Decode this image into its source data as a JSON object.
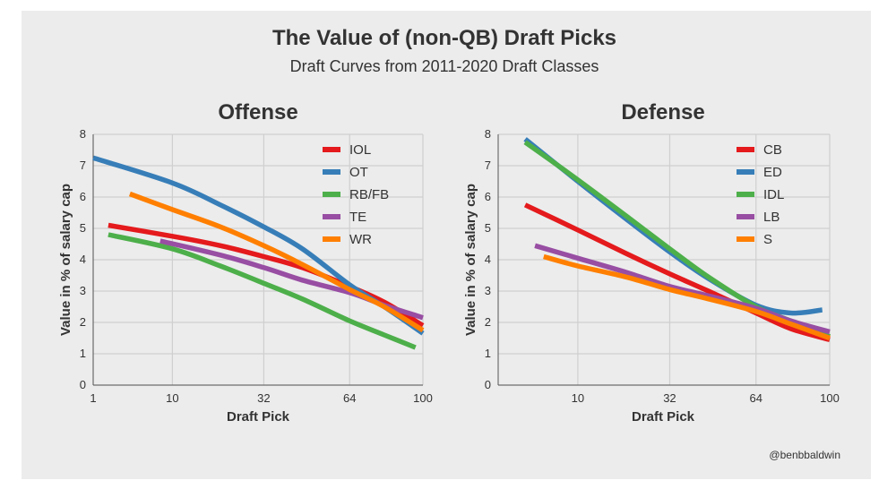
{
  "title": "The Value of (non-QB) Draft Picks",
  "subtitle": "Draft Curves from 2011-2020 Draft Classes",
  "credit": "@benbbaldwin",
  "chart_data": [
    {
      "type": "line",
      "title": "Offense",
      "xlabel": "Draft Pick",
      "ylabel": "Value in % of salary cap",
      "x_scale": "sqrt",
      "xlim": [
        1,
        100
      ],
      "ylim": [
        0,
        8
      ],
      "xticks": [
        1,
        10,
        32,
        64,
        100
      ],
      "xtick_labels": [
        "1",
        "10",
        "32",
        "64",
        "100"
      ],
      "yticks": [
        0,
        1,
        2,
        3,
        4,
        5,
        6,
        7,
        8
      ],
      "ytick_labels": [
        "0",
        "1",
        "2",
        "3",
        "4",
        "5",
        "6",
        "7",
        "8"
      ],
      "grid": true,
      "legend_position": "top-right",
      "series": [
        {
          "name": "IOL",
          "color": "#e41a1c",
          "x": [
            2,
            10,
            20,
            32,
            45,
            64,
            80,
            100
          ],
          "y": [
            5.1,
            4.75,
            4.45,
            4.1,
            3.75,
            3.15,
            2.65,
            1.9
          ]
        },
        {
          "name": "OT",
          "color": "#377eb8",
          "x": [
            1,
            10,
            20,
            32,
            45,
            64,
            80,
            100
          ],
          "y": [
            7.25,
            6.45,
            5.75,
            5.05,
            4.35,
            3.2,
            2.5,
            1.65
          ]
        },
        {
          "name": "RB/FB",
          "color": "#4daf4a",
          "x": [
            2,
            10,
            20,
            32,
            45,
            64,
            80,
            96
          ],
          "y": [
            4.8,
            4.35,
            3.8,
            3.25,
            2.75,
            2.05,
            1.6,
            1.2
          ]
        },
        {
          "name": "TE",
          "color": "#984ea3",
          "x": [
            8,
            20,
            32,
            45,
            64,
            80,
            100
          ],
          "y": [
            4.6,
            4.15,
            3.75,
            3.35,
            2.95,
            2.55,
            2.15
          ]
        },
        {
          "name": "WR",
          "color": "#ff7f00",
          "x": [
            4,
            10,
            20,
            32,
            45,
            64,
            80,
            100
          ],
          "y": [
            6.1,
            5.6,
            5.05,
            4.45,
            3.85,
            3.05,
            2.5,
            1.75
          ]
        }
      ]
    },
    {
      "type": "line",
      "title": "Defense",
      "xlabel": "Draft Pick",
      "ylabel": "Value in % of salary cap",
      "x_scale": "sqrt",
      "xlim": [
        1,
        100
      ],
      "ylim": [
        0,
        8
      ],
      "xticks": [
        10,
        32,
        64,
        100
      ],
      "xtick_labels": [
        "10",
        "32",
        "64",
        "100"
      ],
      "yticks": [
        0,
        1,
        2,
        3,
        4,
        5,
        6,
        7,
        8
      ],
      "ytick_labels": [
        "0",
        "1",
        "2",
        "3",
        "4",
        "5",
        "6",
        "7",
        "8"
      ],
      "grid": true,
      "legend_position": "top-right",
      "series": [
        {
          "name": "CB",
          "color": "#e41a1c",
          "x": [
            3,
            10,
            20,
            32,
            45,
            64,
            80,
            100
          ],
          "y": [
            5.75,
            4.95,
            4.2,
            3.55,
            3.0,
            2.3,
            1.8,
            1.45
          ]
        },
        {
          "name": "ED",
          "color": "#377eb8",
          "x": [
            3,
            10,
            20,
            32,
            45,
            64,
            80,
            96
          ],
          "y": [
            7.85,
            6.5,
            5.3,
            4.25,
            3.4,
            2.55,
            2.3,
            2.4
          ]
        },
        {
          "name": "IDL",
          "color": "#4daf4a",
          "x": [
            3,
            10,
            20,
            32,
            45,
            64,
            80,
            100
          ],
          "y": [
            7.75,
            6.55,
            5.4,
            4.35,
            3.45,
            2.5,
            2.05,
            1.55
          ]
        },
        {
          "name": "LB",
          "color": "#984ea3",
          "x": [
            4,
            10,
            20,
            32,
            45,
            64,
            80,
            100
          ],
          "y": [
            4.45,
            4.05,
            3.6,
            3.15,
            2.85,
            2.45,
            2.05,
            1.7
          ]
        },
        {
          "name": "S",
          "color": "#ff7f00",
          "x": [
            5,
            10,
            20,
            32,
            45,
            64,
            80,
            100
          ],
          "y": [
            4.1,
            3.8,
            3.45,
            3.05,
            2.75,
            2.35,
            1.95,
            1.5
          ]
        }
      ]
    }
  ]
}
